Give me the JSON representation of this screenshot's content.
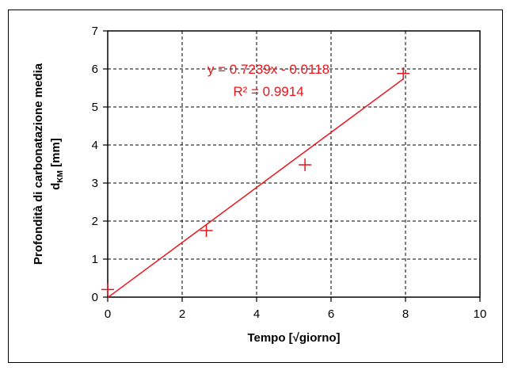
{
  "chart_data": {
    "type": "scatter",
    "title": "",
    "xlabel": "Tempo [√giorno]",
    "ylabel_line1": "Profondità di carbonatazione media",
    "ylabel_line2_main": "d",
    "ylabel_line2_sub": "KM",
    "ylabel_line2_unit": " [mm]",
    "xlim": [
      0,
      10
    ],
    "ylim": [
      0,
      7
    ],
    "xticks": [
      "0",
      "2",
      "4",
      "6",
      "8",
      "10"
    ],
    "yticks": [
      "0",
      "1",
      "2",
      "3",
      "4",
      "5",
      "6",
      "7"
    ],
    "grid": true,
    "legend": "none",
    "series": [
      {
        "marker": "plus",
        "color": "#e8151c",
        "points": [
          {
            "x": 0,
            "y": 0.2
          },
          {
            "x": 2.65,
            "y": 1.75
          },
          {
            "x": 5.3,
            "y": 3.48
          },
          {
            "x": 7.94,
            "y": 5.88
          }
        ]
      }
    ],
    "trendline": {
      "color": "#e8151c",
      "slope": 0.7239,
      "intercept": -0.0118,
      "x_range": [
        0,
        7.94
      ],
      "equation": "y = 0.7239x - 0.0118",
      "r2": "R² = 0.9914"
    }
  }
}
